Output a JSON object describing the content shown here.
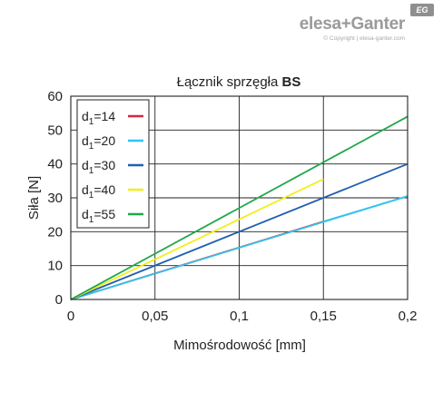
{
  "brand": {
    "logo": "elesa+Ganter",
    "badge": "EG",
    "copyright": "© Copyright | elesa-ganter.com"
  },
  "chart_data": {
    "type": "line",
    "title_prefix": "Łącznik sprzęgła ",
    "title_bold": "BS",
    "xlabel": "Mimośrodowość [mm]",
    "ylabel": "Siła [N]",
    "xlim": [
      0,
      0.2
    ],
    "ylim": [
      0,
      60
    ],
    "x_ticks": [
      0,
      0.05,
      0.1,
      0.15,
      0.2
    ],
    "x_tick_labels": [
      "0",
      "0,05",
      "0,1",
      "0,15",
      "0,2"
    ],
    "y_ticks": [
      0,
      10,
      20,
      30,
      40,
      50,
      60
    ],
    "y_tick_labels": [
      "0",
      "10",
      "20",
      "30",
      "40",
      "50",
      "60"
    ],
    "grid": true,
    "legend_position": "top-left",
    "series": [
      {
        "name": "d1=14",
        "sub_main": "d",
        "sub": "1",
        "sub_rest": "=14",
        "color": "#d7263d",
        "x": [
          0,
          0.15
        ],
        "y": [
          0,
          23
        ],
        "extension": {
          "color": "#33c3ee",
          "x": [
            0.15,
            0.2
          ],
          "y": [
            23,
            30.5
          ]
        }
      },
      {
        "name": "d1=20",
        "sub_main": "d",
        "sub": "1",
        "sub_rest": "=20",
        "color": "#33c3ee",
        "x": [
          0,
          0.2
        ],
        "y": [
          0,
          30.5
        ]
      },
      {
        "name": "d1=30",
        "sub_main": "d",
        "sub": "1",
        "sub_rest": "=30",
        "color": "#1f5fb0",
        "x": [
          0,
          0.2
        ],
        "y": [
          0,
          40
        ]
      },
      {
        "name": "d1=40",
        "sub_main": "d",
        "sub": "1",
        "sub_rest": "=40",
        "color": "#f2ef1a",
        "x": [
          0,
          0.15
        ],
        "y": [
          0,
          35.5
        ]
      },
      {
        "name": "d1=55",
        "sub_main": "d",
        "sub": "1",
        "sub_rest": "=55",
        "color": "#22a84a",
        "x": [
          0,
          0.2
        ],
        "y": [
          0,
          54
        ]
      }
    ]
  }
}
